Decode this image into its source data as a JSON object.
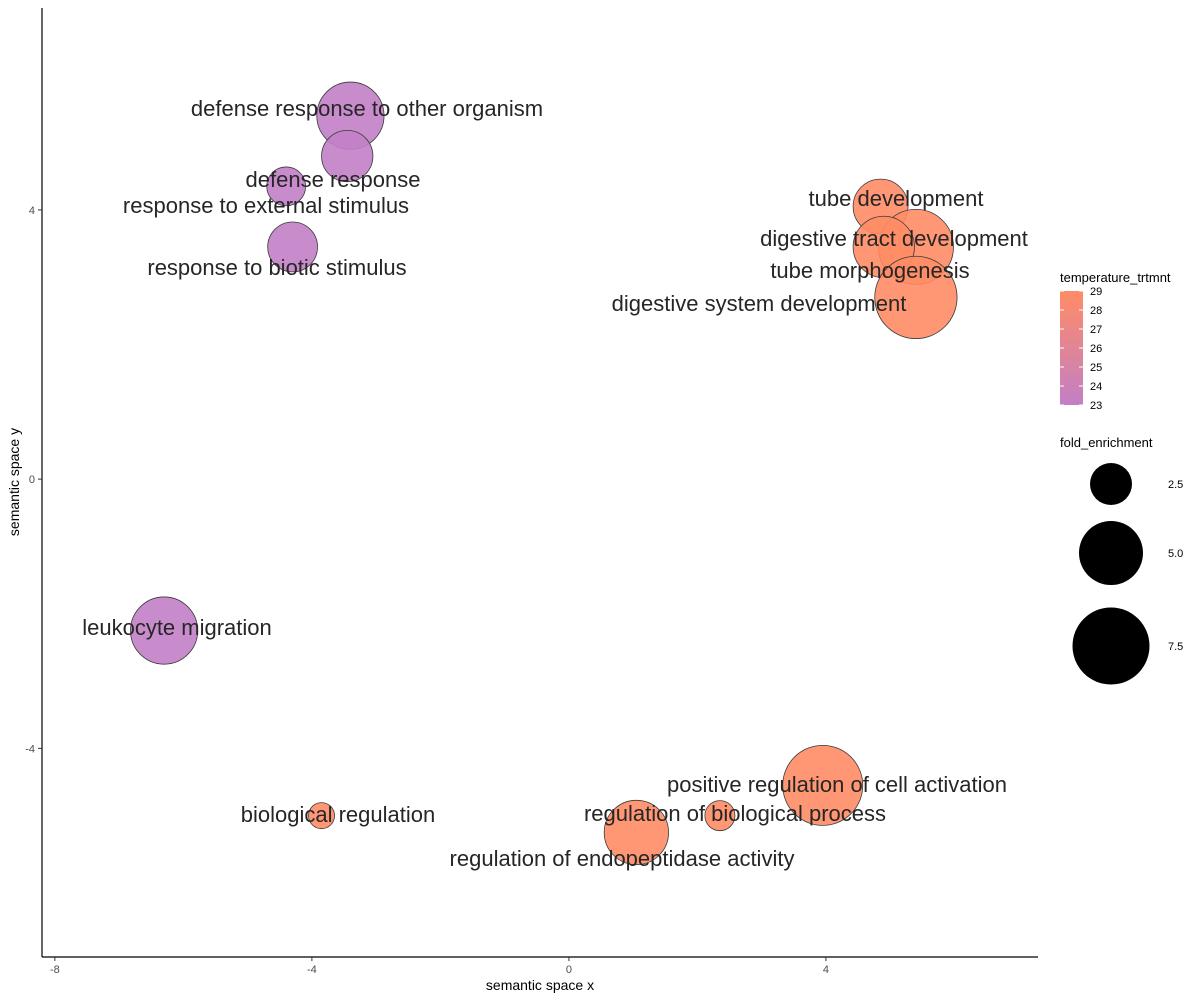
{
  "chart_data": {
    "type": "scatter",
    "title": "",
    "xlabel": "semantic space x",
    "ylabel": "semantic space y",
    "xlim": [
      -8.2,
      7.3
    ],
    "ylim": [
      -7.1,
      7.0
    ],
    "x_ticks": [
      -8,
      -4,
      0,
      4
    ],
    "y_ticks": [
      -4,
      0,
      4
    ],
    "grid": false,
    "legend_position": "right",
    "points": [
      {
        "label": "defense response to other organism",
        "x": -3.4,
        "y": 5.4,
        "temperature_trtmnt": 23,
        "fold_enrichment": 6.0
      },
      {
        "label": "defense response",
        "x": -3.45,
        "y": 4.8,
        "temperature_trtmnt": 23,
        "fold_enrichment": 3.5
      },
      {
        "label": "response to external stimulus",
        "x": -4.4,
        "y": 4.35,
        "temperature_trtmnt": 23,
        "fold_enrichment": 2.0
      },
      {
        "label": "response to biotic stimulus",
        "x": -4.3,
        "y": 3.45,
        "temperature_trtmnt": 23,
        "fold_enrichment": 3.3
      },
      {
        "label": "tube development",
        "x": 4.85,
        "y": 4.05,
        "temperature_trtmnt": 29,
        "fold_enrichment": 4.0
      },
      {
        "label": "digestive tract development",
        "x": 5.4,
        "y": 3.45,
        "temperature_trtmnt": 29,
        "fold_enrichment": 7.5
      },
      {
        "label": "tube morphogenesis",
        "x": 4.9,
        "y": 3.45,
        "temperature_trtmnt": 29,
        "fold_enrichment": 5.0
      },
      {
        "label": "digestive system development",
        "x": 5.4,
        "y": 2.7,
        "temperature_trtmnt": 29,
        "fold_enrichment": 9.0
      },
      {
        "label": "leukocyte migration",
        "x": -6.3,
        "y": -2.25,
        "temperature_trtmnt": 23,
        "fold_enrichment": 6.0
      },
      {
        "label": "positive regulation of cell activation",
        "x": 3.95,
        "y": -4.55,
        "temperature_trtmnt": 29,
        "fold_enrichment": 8.5
      },
      {
        "label": "biological regulation",
        "x": -3.85,
        "y": -5.0,
        "temperature_trtmnt": 29,
        "fold_enrichment": 0.9
      },
      {
        "label": "regulation of biological process",
        "x": 2.35,
        "y": -5.0,
        "temperature_trtmnt": 29,
        "fold_enrichment": 1.2
      },
      {
        "label": "regulation of endopeptidase activity",
        "x": 1.05,
        "y": -5.25,
        "temperature_trtmnt": 29,
        "fold_enrichment": 5.5
      }
    ],
    "color_legend": {
      "title": "temperature_trtmnt",
      "labels": [
        "29",
        "28",
        "27",
        "26",
        "25",
        "24",
        "23"
      ],
      "color_low": "#c27fc6",
      "color_high": "#ff8c65"
    },
    "size_legend": {
      "title": "fold_enrichment",
      "labels": [
        "2.5",
        "5.0",
        "7.5"
      ],
      "values": [
        2.5,
        5.0,
        7.5
      ]
    }
  }
}
